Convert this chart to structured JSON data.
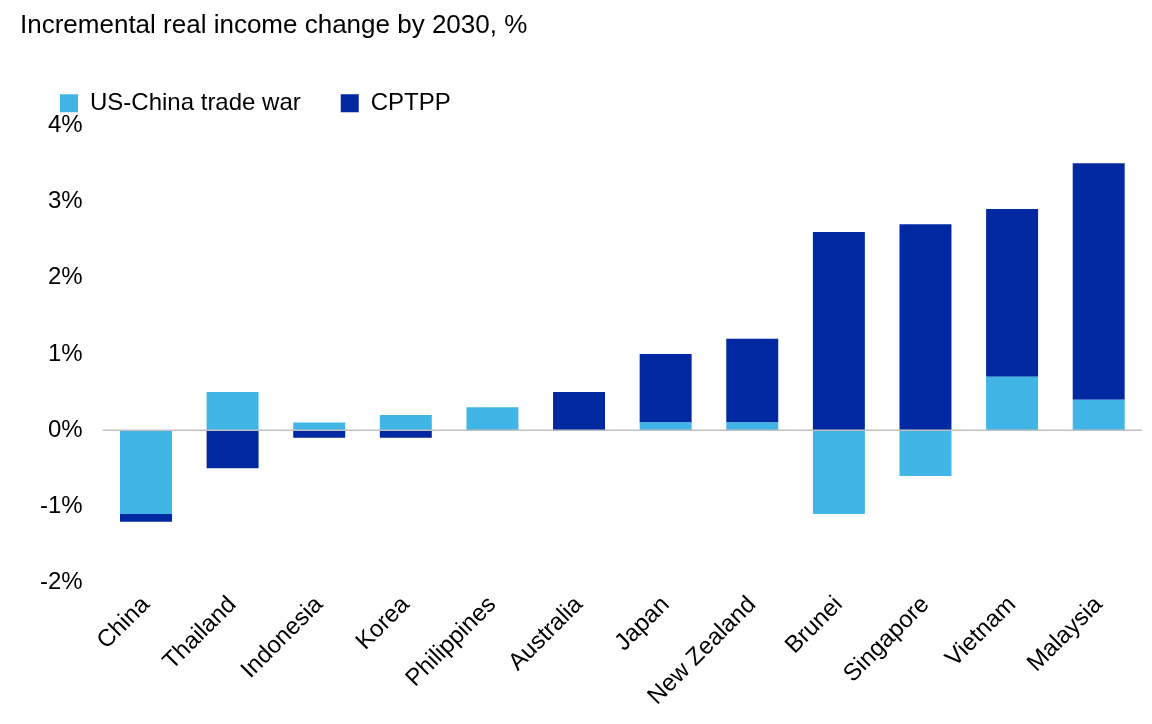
{
  "chart_data": {
    "type": "bar",
    "title": "Incremental real income change by 2030, %",
    "categories": [
      "China",
      "Thailand",
      "Indonesia",
      "Korea",
      "Philippines",
      "Australia",
      "Japan",
      "New Zealand",
      "Brunei",
      "Singapore",
      "Vietnam",
      "Malaysia"
    ],
    "series": [
      {
        "name": "US-China trade war",
        "color": "#41b6e6",
        "values": [
          -1.1,
          0.5,
          0.1,
          0.2,
          0.3,
          0,
          0.1,
          0.1,
          -1.1,
          -0.6,
          0.7,
          0.4
        ]
      },
      {
        "name": "CPTPP",
        "color": "#0028a0",
        "values": [
          -0.1,
          -0.5,
          -0.1,
          -0.1,
          0,
          0.5,
          0.9,
          1.1,
          2.6,
          2.7,
          2.2,
          3.1
        ]
      }
    ],
    "stacked": true,
    "ylim": [
      -2,
      4
    ],
    "yticks": [
      {
        "value": -2,
        "label": "-2%"
      },
      {
        "value": -1,
        "label": "-1%"
      },
      {
        "value": 0,
        "label": "0%"
      },
      {
        "value": 1,
        "label": "1%"
      },
      {
        "value": 2,
        "label": "2%"
      },
      {
        "value": 3,
        "label": "3%"
      },
      {
        "value": 4,
        "label": "4%"
      }
    ],
    "ref_lines": [
      {
        "axis": "y",
        "value": 0,
        "color": "#bfbfbf"
      }
    ],
    "grid": false,
    "legend": "top left"
  }
}
